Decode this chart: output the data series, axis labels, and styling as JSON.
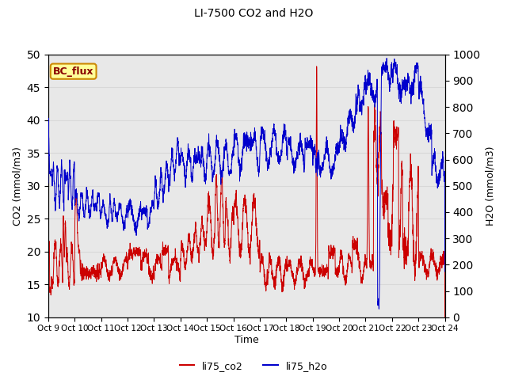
{
  "title": "LI-7500 CO2 and H2O",
  "xlabel": "Time",
  "ylabel_left": "CO2 (mmol/m3)",
  "ylabel_right": "H2O (mmol/m3)",
  "ylim_left": [
    10,
    50
  ],
  "ylim_right": [
    0,
    1000
  ],
  "yticks_left": [
    10,
    15,
    20,
    25,
    30,
    35,
    40,
    45,
    50
  ],
  "yticks_right": [
    0,
    100,
    200,
    300,
    400,
    500,
    600,
    700,
    800,
    900,
    1000
  ],
  "xtick_labels": [
    "Oct 9",
    "Oct 10",
    "Oct 11",
    "Oct 12",
    "Oct 13",
    "Oct 14",
    "Oct 15",
    "Oct 16",
    "Oct 17",
    "Oct 18",
    "Oct 19",
    "Oct 20",
    "Oct 21",
    "Oct 22",
    "Oct 23",
    "Oct 24"
  ],
  "co2_color": "#cc0000",
  "h2o_color": "#0000cc",
  "grid_color": "#d8d8d8",
  "bg_color": "#e8e8e8",
  "plot_bg_color": "#ffffff",
  "annotation_text": "BC_flux",
  "annotation_bg": "#ffff99",
  "annotation_border": "#cc8800",
  "annotation_text_color": "#880000",
  "legend_co2": "li75_co2",
  "legend_h2o": "li75_h2o",
  "figsize": [
    6.4,
    4.8
  ],
  "dpi": 100
}
